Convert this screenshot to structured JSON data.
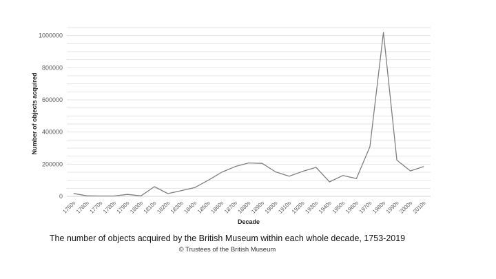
{
  "caption": "The number of objects acquired by the British Museum within each whole decade, 1753-2019",
  "credit": "© Trustees of the British Museum",
  "colors": {
    "line": "#7f7f7f",
    "grid": "#e4e4e4",
    "tick_text": "#595959"
  },
  "chart_data": {
    "type": "line",
    "title": "",
    "xlabel": "Decade",
    "ylabel": "Number of objects acquired",
    "ylim": [
      0,
      1050000
    ],
    "yticks": [
      0,
      200000,
      400000,
      600000,
      800000,
      1000000
    ],
    "grid": true,
    "categories": [
      "1750s",
      "1760s",
      "1770s",
      "1780s",
      "1790s",
      "1800s",
      "1810s",
      "1820s",
      "1830s",
      "1840s",
      "1850s",
      "1860s",
      "1870s",
      "1880s",
      "1890s",
      "1900s",
      "1910s",
      "1920s",
      "1930s",
      "1940s",
      "1950s",
      "1960s",
      "1970s",
      "1980s",
      "1990s",
      "2000s",
      "2010s"
    ],
    "series": [
      {
        "values": [
          18000,
          3000,
          2000,
          2000,
          12000,
          3000,
          60000,
          17000,
          35000,
          55000,
          100000,
          150000,
          185000,
          208000,
          205000,
          152000,
          125000,
          155000,
          180000,
          90000,
          130000,
          110000,
          310000,
          1020000,
          225000,
          158000,
          185000
        ]
      }
    ]
  }
}
